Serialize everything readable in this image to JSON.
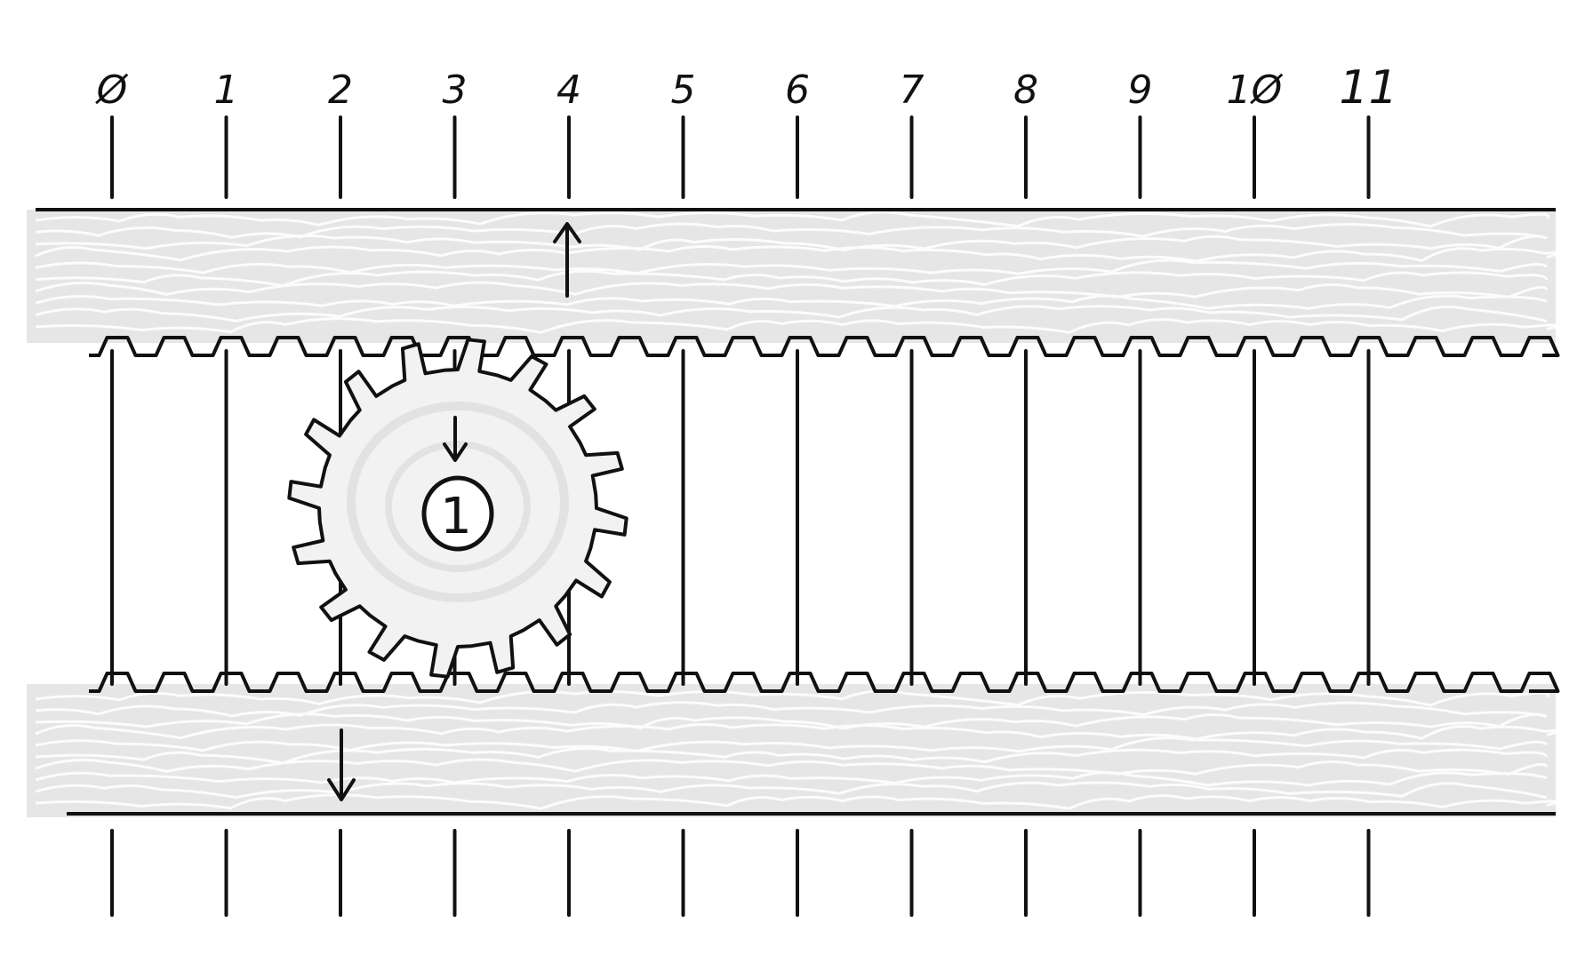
{
  "diagram": {
    "scale_labels": [
      "Ø",
      "1",
      "2",
      "3",
      "4",
      "5",
      "6",
      "7",
      "8",
      "9",
      "1Ø",
      "11"
    ],
    "gear_label": "1",
    "colors": {
      "ink": "#111111",
      "rack_fill": "#e6e6e6",
      "scribble": "#ffffff",
      "gear_fill": "#f2f2f2",
      "gear_swirl": "#e2e2e2",
      "background": "#ffffff"
    }
  }
}
